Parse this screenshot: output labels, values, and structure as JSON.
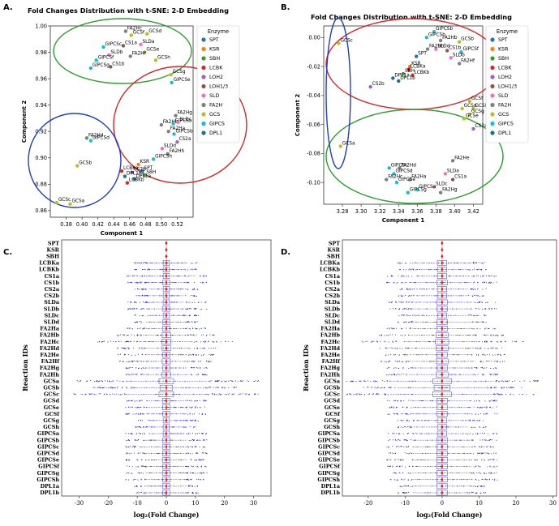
{
  "figure": {
    "panels": {
      "a": {
        "letter": "A.",
        "title": "Fold Changes Distribution with t-SNE: 2-D Embedding"
      },
      "b": {
        "letter": "B.",
        "title": "Fold Changes Distribution with t-SNE: 2-D Embedding"
      },
      "c": {
        "letter": "C."
      },
      "d": {
        "letter": "D."
      }
    }
  },
  "legend": {
    "title": "Enzyme",
    "items": [
      {
        "label": "SPT",
        "color": "#1f77b4"
      },
      {
        "label": "KSR",
        "color": "#ff7f0e"
      },
      {
        "label": "SBH",
        "color": "#2ca02c"
      },
      {
        "label": "LCBK",
        "color": "#d62728"
      },
      {
        "label": "LOH2",
        "color": "#9467bd"
      },
      {
        "label": "LOH1/3",
        "color": "#8c564b"
      },
      {
        "label": "SLD",
        "color": "#e377c2"
      },
      {
        "label": "FA2H",
        "color": "#7f7f7f"
      },
      {
        "label": "GCS",
        "color": "#bcbd22"
      },
      {
        "label": "GIPCS",
        "color": "#17becf"
      },
      {
        "label": "DPL1",
        "color": "#1f6f8b"
      }
    ]
  },
  "chart_data": [
    {
      "type": "scatter",
      "title": "Fold Changes Distribution with t-SNE: 2-D Embedding",
      "xlabel": "Component 1",
      "ylabel": "Component 2",
      "xlim": [
        0.36,
        0.54
      ],
      "ylim": [
        0.855,
        1.0
      ],
      "xticks": [
        "0.38",
        "0.40",
        "0.42",
        "0.44",
        "0.46",
        "0.48",
        "0.50",
        "0.52"
      ],
      "yticks": [
        "0.86",
        "0.88",
        "0.90",
        "0.92",
        "0.94",
        "0.96",
        "0.98",
        "1.00"
      ],
      "legend_position": "right",
      "points": [
        {
          "label": "FA2Hc",
          "x": 0.455,
          "y": 0.996,
          "enzyme": "FA2H"
        },
        {
          "label": "GCSf",
          "x": 0.462,
          "y": 0.993,
          "enzyme": "GCS"
        },
        {
          "label": "GCSd",
          "x": 0.482,
          "y": 0.994,
          "enzyme": "GCS"
        },
        {
          "label": "SLDa",
          "x": 0.474,
          "y": 0.986,
          "enzyme": "SLD"
        },
        {
          "label": "GIPCSc",
          "x": 0.427,
          "y": 0.984,
          "enzyme": "GIPCS"
        },
        {
          "label": "CS1a",
          "x": 0.452,
          "y": 0.985,
          "enzyme": "LOH1/3"
        },
        {
          "label": "GCSe",
          "x": 0.479,
          "y": 0.98,
          "enzyme": "GCS"
        },
        {
          "label": "SLDb",
          "x": 0.434,
          "y": 0.978,
          "enzyme": "SLD"
        },
        {
          "label": "FA2Hf",
          "x": 0.461,
          "y": 0.977,
          "enzyme": "FA2H"
        },
        {
          "label": "GCSh",
          "x": 0.493,
          "y": 0.974,
          "enzyme": "GCS"
        },
        {
          "label": "GIPCSf",
          "x": 0.418,
          "y": 0.974,
          "enzyme": "GIPCS"
        },
        {
          "label": "GIPCSg",
          "x": 0.411,
          "y": 0.968,
          "enzyme": "GIPCS"
        },
        {
          "label": "CS1b",
          "x": 0.436,
          "y": 0.969,
          "enzyme": "LOH1/3"
        },
        {
          "label": "GCSg",
          "x": 0.512,
          "y": 0.963,
          "enzyme": "GCS"
        },
        {
          "label": "GIPCSe",
          "x": 0.513,
          "y": 0.957,
          "enzyme": "GIPCS"
        },
        {
          "label": "FA2Hg",
          "x": 0.518,
          "y": 0.932,
          "enzyme": "FA2H"
        },
        {
          "label": "FA2Hb",
          "x": 0.5,
          "y": 0.925,
          "enzyme": "FA2H"
        },
        {
          "label": "GIPCSa",
          "x": 0.515,
          "y": 0.926,
          "enzyme": "GIPCS"
        },
        {
          "label": "SLDc",
          "x": 0.521,
          "y": 0.927,
          "enzyme": "SLD"
        },
        {
          "label": "FA2Ha",
          "x": 0.509,
          "y": 0.92,
          "enzyme": "FA2H"
        },
        {
          "label": "GIPCSb",
          "x": 0.516,
          "y": 0.918,
          "enzyme": "GIPCS"
        },
        {
          "label": "CS2a",
          "x": 0.52,
          "y": 0.912,
          "enzyme": "LOH2"
        },
        {
          "label": "SLDd",
          "x": 0.501,
          "y": 0.907,
          "enzyme": "SLD"
        },
        {
          "label": "FA2Hh",
          "x": 0.508,
          "y": 0.903,
          "enzyme": "FA2H"
        },
        {
          "label": "GIPCSh",
          "x": 0.49,
          "y": 0.899,
          "enzyme": "GIPCS"
        },
        {
          "label": "KSR",
          "x": 0.471,
          "y": 0.895,
          "enzyme": "KSR"
        },
        {
          "label": "SPT",
          "x": 0.476,
          "y": 0.89,
          "enzyme": "SPT"
        },
        {
          "label": "SBH",
          "x": 0.479,
          "y": 0.887,
          "enzyme": "SBH"
        },
        {
          "label": "CS2b",
          "x": 0.463,
          "y": 0.889,
          "enzyme": "LOH2"
        },
        {
          "label": "LCBKa",
          "x": 0.45,
          "y": 0.89,
          "enzyme": "LCBK"
        },
        {
          "label": "DPL1b",
          "x": 0.454,
          "y": 0.886,
          "enzyme": "DPL1"
        },
        {
          "label": "DPL1a",
          "x": 0.466,
          "y": 0.884,
          "enzyme": "DPL1"
        },
        {
          "label": "LCBKb",
          "x": 0.457,
          "y": 0.881,
          "enzyme": "LCBK"
        },
        {
          "label": "FA2Hd",
          "x": 0.406,
          "y": 0.915,
          "enzyme": "FA2H"
        },
        {
          "label": "GIPCSd",
          "x": 0.411,
          "y": 0.913,
          "enzyme": "GIPCS"
        },
        {
          "label": "GCSb",
          "x": 0.394,
          "y": 0.894,
          "enzyme": "GCS"
        },
        {
          "label": "GCSc",
          "x": 0.368,
          "y": 0.866,
          "enzyme": "GCS"
        },
        {
          "label": "GCSa",
          "x": 0.385,
          "y": 0.865,
          "enzyme": "GCS"
        }
      ]
    },
    {
      "type": "scatter",
      "title": "Fold Changes Distribution with t-SNE: 2-D Embedding",
      "xlabel": "Component 1",
      "ylabel": "Component 2",
      "xlim": [
        3.26,
        3.43
      ],
      "ylim": [
        -0.115,
        0.008
      ],
      "xticks": [
        "3.28",
        "3.30",
        "3.32",
        "3.34",
        "3.36",
        "3.38",
        "3.40",
        "3.42"
      ],
      "yticks": [
        "0.00",
        "-0.02",
        "-0.04",
        "-0.06",
        "-0.08",
        "-0.10"
      ],
      "legend_position": "right",
      "points": [
        {
          "label": "GCSc",
          "x": 3.276,
          "y": -0.004,
          "enzyme": "GCS"
        },
        {
          "label": "GIPCSb",
          "x": 3.378,
          "y": 0.004,
          "enzyme": "GIPCS"
        },
        {
          "label": "GIPCSh",
          "x": 3.37,
          "y": 0.0,
          "enzyme": "GIPCS"
        },
        {
          "label": "FA2Hb",
          "x": 3.385,
          "y": -0.002,
          "enzyme": "FA2H"
        },
        {
          "label": "GCSb",
          "x": 3.405,
          "y": -0.003,
          "enzyme": "GCS"
        },
        {
          "label": "FA2Hh",
          "x": 3.371,
          "y": -0.008,
          "enzyme": "FA2H"
        },
        {
          "label": "SLDd",
          "x": 3.38,
          "y": -0.008,
          "enzyme": "SLD"
        },
        {
          "label": "CS1b",
          "x": 3.392,
          "y": -0.009,
          "enzyme": "LOH1/3"
        },
        {
          "label": "GIPCSf",
          "x": 3.407,
          "y": -0.01,
          "enzyme": "GIPCS"
        },
        {
          "label": "SPT",
          "x": 3.359,
          "y": -0.013,
          "enzyme": "SPT"
        },
        {
          "label": "SLDb",
          "x": 3.396,
          "y": -0.014,
          "enzyme": "SLD"
        },
        {
          "label": "FA2Hf",
          "x": 3.405,
          "y": -0.018,
          "enzyme": "FA2H"
        },
        {
          "label": "KSR",
          "x": 3.352,
          "y": -0.02,
          "enzyme": "KSR"
        },
        {
          "label": "LCBKa",
          "x": 3.351,
          "y": -0.022,
          "enzyme": "LCBK"
        },
        {
          "label": "SBH",
          "x": 3.345,
          "y": -0.025,
          "enzyme": "SBH"
        },
        {
          "label": "LCBKb",
          "x": 3.355,
          "y": -0.026,
          "enzyme": "LCBK"
        },
        {
          "label": "DPL1a",
          "x": 3.334,
          "y": -0.028,
          "enzyme": "DPL1"
        },
        {
          "label": "DPL1b",
          "x": 3.34,
          "y": -0.03,
          "enzyme": "DPL1"
        },
        {
          "label": "CS2b",
          "x": 3.31,
          "y": -0.034,
          "enzyme": "LOH2"
        },
        {
          "label": "GCSf",
          "x": 3.416,
          "y": -0.044,
          "enzyme": "GCS"
        },
        {
          "label": "GCSd",
          "x": 3.408,
          "y": -0.049,
          "enzyme": "GCS"
        },
        {
          "label": "GCSh",
          "x": 3.42,
          "y": -0.049,
          "enzyme": "GCS"
        },
        {
          "label": "GCSg",
          "x": 3.416,
          "y": -0.053,
          "enzyme": "GCS"
        },
        {
          "label": "GCSe",
          "x": 3.41,
          "y": -0.056,
          "enzyme": "GCS"
        },
        {
          "label": "CS2a",
          "x": 3.42,
          "y": -0.063,
          "enzyme": "LOH2"
        },
        {
          "label": "GCSa",
          "x": 3.278,
          "y": -0.075,
          "enzyme": "GCS"
        },
        {
          "label": "FA2He",
          "x": 3.398,
          "y": -0.085,
          "enzyme": "FA2H"
        },
        {
          "label": "GIPCSc",
          "x": 3.33,
          "y": -0.09,
          "enzyme": "GIPCS"
        },
        {
          "label": "FA2Hd",
          "x": 3.341,
          "y": -0.09,
          "enzyme": "FA2H"
        },
        {
          "label": "GIPCSd",
          "x": 3.335,
          "y": -0.094,
          "enzyme": "GIPCS"
        },
        {
          "label": "SLDa",
          "x": 3.39,
          "y": -0.094,
          "enzyme": "SLD"
        },
        {
          "label": "FA2Hc",
          "x": 3.327,
          "y": -0.098,
          "enzyme": "FA2H"
        },
        {
          "label": "FA2Ha",
          "x": 3.352,
          "y": -0.098,
          "enzyme": "FA2H"
        },
        {
          "label": "CS1a",
          "x": 3.398,
          "y": -0.098,
          "enzyme": "LOH1/3"
        },
        {
          "label": "GIPCSe",
          "x": 3.338,
          "y": -0.1,
          "enzyme": "GIPCS"
        },
        {
          "label": "SLDc",
          "x": 3.378,
          "y": -0.103,
          "enzyme": "SLD"
        },
        {
          "label": "GIPCSa",
          "x": 3.36,
          "y": -0.105,
          "enzyme": "GIPCS"
        },
        {
          "label": "GIPCSg",
          "x": 3.35,
          "y": -0.107,
          "enzyme": "GIPCS"
        },
        {
          "label": "FA2Hg",
          "x": 3.385,
          "y": -0.107,
          "enzyme": "FA2H"
        }
      ]
    },
    {
      "type": "box",
      "xlabel": "log₂(Fold Change)",
      "ylabel": "Reaction IDs",
      "xlim": [
        -36,
        36
      ],
      "xticks": [
        -30,
        -20,
        -10,
        0,
        10,
        20,
        30
      ],
      "categories": [
        "SPT",
        "KSR",
        "SBH",
        "LCBKa",
        "LCBKb",
        "CS1a",
        "CS1b",
        "CS2a",
        "CS2b",
        "SLDa",
        "SLDb",
        "SLDc",
        "SLDd",
        "FA2Ha",
        "FA2Hb",
        "FA2Hc",
        "FA2Hd",
        "FA2He",
        "FA2Hf",
        "FA2Hg",
        "FA2Hh",
        "GCSa",
        "GCSb",
        "GCSc",
        "GCSd",
        "GCSe",
        "GCSf",
        "GCSg",
        "GCSh",
        "GIPCSa",
        "GIPCSb",
        "GIPCSc",
        "GIPCSd",
        "GIPCSe",
        "GIPCSf",
        "GIPCSg",
        "GIPCSh",
        "DPL1a",
        "DPL1b"
      ],
      "whisker_extent": [
        0,
        0,
        0,
        6,
        6,
        6,
        7,
        6,
        6,
        6,
        7,
        6,
        7,
        7,
        8,
        9,
        8,
        7,
        8,
        7,
        8,
        14,
        12,
        14,
        7,
        7,
        7,
        6,
        6,
        6,
        7,
        7,
        7,
        7,
        7,
        7,
        7,
        7,
        7
      ],
      "outlier_extent": [
        0,
        0,
        0,
        11,
        11,
        14,
        14,
        11,
        11,
        14,
        14,
        11,
        11,
        14,
        17,
        24,
        17,
        17,
        17,
        14,
        14,
        32,
        25,
        32,
        14,
        14,
        14,
        11,
        11,
        14,
        14,
        14,
        14,
        14,
        14,
        14,
        14,
        11,
        11
      ]
    },
    {
      "type": "box",
      "xlabel": "log₂(Fold Change)",
      "ylabel": "Reaction IDs",
      "xlim": [
        -27,
        31
      ],
      "xticks": [
        -20,
        -10,
        0,
        10,
        20,
        30
      ],
      "categories": [
        "SPT",
        "KSR",
        "SBH",
        "LCBKa",
        "LCBKb",
        "CS1a",
        "CS1b",
        "CS2a",
        "CS2b",
        "SLDa",
        "SLDb",
        "SLDc",
        "SLDd",
        "FA2Ha",
        "FA2Hb",
        "FA2Hc",
        "FA2Hd",
        "FA2He",
        "FA2Hf",
        "FA2Hg",
        "FA2Hh",
        "GCSa",
        "GCSb",
        "GCSc",
        "GCSd",
        "GCSe",
        "GCSf",
        "GCSg",
        "GCSh",
        "GIPCSa",
        "GIPCSb",
        "GIPCSc",
        "GIPCSd",
        "GIPCSe",
        "GIPCSf",
        "GIPCSg",
        "GIPCSh",
        "DPL1a",
        "DPL1b"
      ],
      "whisker_extent": [
        0,
        0,
        0,
        7,
        7,
        7,
        8,
        7,
        7,
        8,
        8,
        7,
        8,
        8,
        9,
        10,
        9,
        8,
        9,
        8,
        9,
        14,
        12,
        14,
        8,
        8,
        8,
        7,
        7,
        7,
        8,
        8,
        8,
        8,
        8,
        8,
        8,
        8,
        8
      ],
      "outlier_extent": [
        0,
        0,
        0,
        12,
        12,
        15,
        15,
        12,
        12,
        15,
        15,
        12,
        12,
        15,
        17,
        22,
        17,
        17,
        17,
        15,
        15,
        26,
        22,
        26,
        15,
        15,
        15,
        12,
        12,
        15,
        15,
        15,
        15,
        15,
        15,
        15,
        15,
        12,
        12
      ]
    }
  ]
}
